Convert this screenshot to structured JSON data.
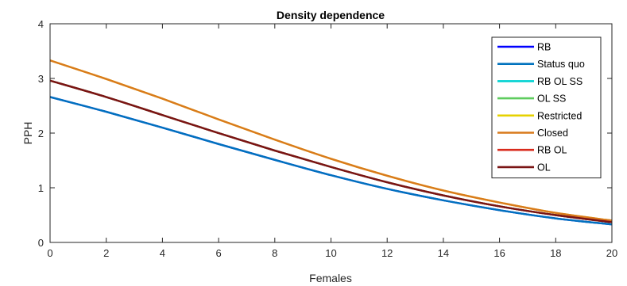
{
  "chart_data": {
    "type": "line",
    "title": "Density dependence",
    "xlabel": "Females",
    "ylabel": "PPH",
    "xlim": [
      0,
      20
    ],
    "ylim": [
      0,
      4
    ],
    "xticks": [
      0,
      2,
      4,
      6,
      8,
      10,
      12,
      14,
      16,
      18,
      20
    ],
    "yticks": [
      0,
      1,
      2,
      3,
      4
    ],
    "grid": false,
    "legend_position": "top-right",
    "x": [
      0,
      2,
      4,
      6,
      8,
      10,
      12,
      14,
      16,
      18,
      20
    ],
    "series": [
      {
        "name": "RB",
        "color": "#0000ff",
        "values": [
          2.66,
          2.39,
          2.1,
          1.8,
          1.51,
          1.23,
          0.98,
          0.77,
          0.59,
          0.44,
          0.33
        ]
      },
      {
        "name": "Status quo",
        "color": "#0072bd",
        "values": [
          2.66,
          2.39,
          2.1,
          1.8,
          1.51,
          1.23,
          0.98,
          0.77,
          0.59,
          0.44,
          0.33
        ]
      },
      {
        "name": "RB OL SS",
        "color": "#00d2d2",
        "values": [
          2.96,
          2.66,
          2.33,
          2.0,
          1.68,
          1.38,
          1.1,
          0.86,
          0.66,
          0.5,
          0.37
        ]
      },
      {
        "name": "OL SS",
        "color": "#5ecc5e",
        "values": [
          2.96,
          2.66,
          2.33,
          2.0,
          1.68,
          1.38,
          1.1,
          0.86,
          0.66,
          0.5,
          0.37
        ]
      },
      {
        "name": "Restricted",
        "color": "#e6d200",
        "values": [
          3.33,
          2.99,
          2.63,
          2.25,
          1.88,
          1.53,
          1.22,
          0.95,
          0.73,
          0.54,
          0.4
        ]
      },
      {
        "name": "Closed",
        "color": "#d97a1c",
        "values": [
          3.33,
          2.99,
          2.63,
          2.25,
          1.88,
          1.53,
          1.22,
          0.95,
          0.73,
          0.54,
          0.4
        ]
      },
      {
        "name": "RB OL",
        "color": "#d92b1c",
        "values": [
          2.96,
          2.66,
          2.33,
          2.0,
          1.68,
          1.38,
          1.1,
          0.86,
          0.66,
          0.5,
          0.37
        ]
      },
      {
        "name": "OL",
        "color": "#7a1414",
        "values": [
          2.96,
          2.66,
          2.33,
          2.0,
          1.68,
          1.38,
          1.1,
          0.86,
          0.66,
          0.5,
          0.37
        ]
      }
    ]
  }
}
